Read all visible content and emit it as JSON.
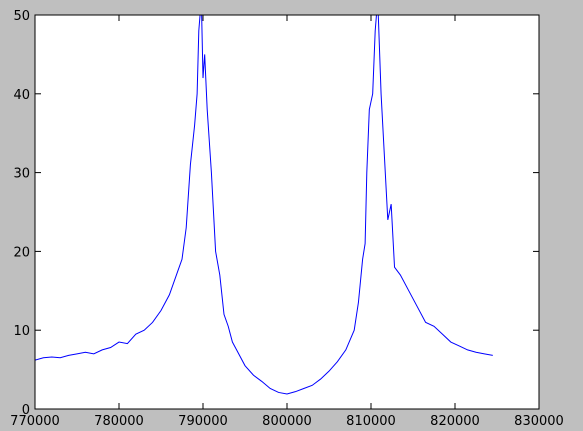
{
  "chart_data": {
    "type": "line",
    "color": "#0000ff",
    "x": [
      770000,
      771000,
      772000,
      773000,
      774000,
      775000,
      776000,
      777000,
      778000,
      779000,
      780000,
      781000,
      782000,
      783000,
      784000,
      785000,
      786000,
      787000,
      787500,
      788000,
      788500,
      789000,
      789300,
      789500,
      789800,
      790000,
      790200,
      790500,
      791000,
      791500,
      792000,
      792500,
      793000,
      793500,
      794000,
      795000,
      796000,
      797000,
      798000,
      799000,
      800000,
      801000,
      802000,
      803000,
      804000,
      805000,
      806000,
      807000,
      808000,
      808500,
      809000,
      809300,
      809500,
      809800,
      810200,
      810500,
      810800,
      811200,
      811600,
      812000,
      812400,
      812800,
      813500,
      814500,
      815500,
      816500,
      817500,
      818500,
      819500,
      820500,
      821500,
      822500,
      823500,
      824500
    ],
    "values": [
      6.2,
      6.5,
      6.6,
      6.5,
      6.8,
      7.0,
      7.2,
      7.0,
      7.5,
      7.8,
      8.5,
      8.3,
      9.5,
      10.0,
      11.0,
      12.5,
      14.5,
      17.5,
      19,
      23,
      31,
      36,
      40,
      48,
      52,
      42,
      45,
      38,
      30,
      20,
      17,
      12,
      10.5,
      8.5,
      7.5,
      5.5,
      4.3,
      3.5,
      2.6,
      2.1,
      1.9,
      2.2,
      2.6,
      3.0,
      3.8,
      4.8,
      6.0,
      7.5,
      10.0,
      13.5,
      19,
      21,
      30,
      38,
      40,
      48,
      52,
      40,
      32,
      24,
      26,
      18,
      17,
      15,
      13,
      11,
      10.5,
      9.5,
      8.5,
      8,
      7.5,
      7.2,
      7.0,
      6.8
    ],
    "xlim": [
      770000,
      830000
    ],
    "ylim": [
      0,
      50
    ],
    "xticks": [
      770000,
      780000,
      790000,
      800000,
      810000,
      820000,
      830000
    ],
    "yticks": [
      0,
      10,
      20,
      30,
      40,
      50
    ]
  }
}
